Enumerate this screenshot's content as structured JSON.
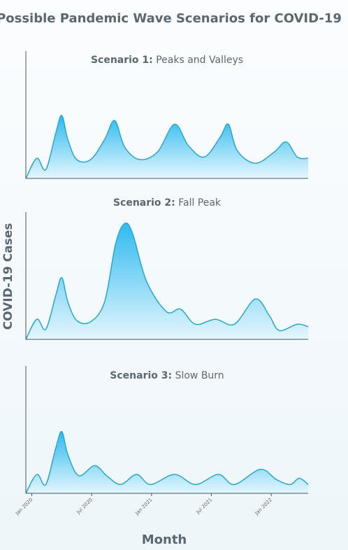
{
  "title": "Possible Pandemic Wave Scenarios for COVID-19",
  "ylabel": "COVID-19 Cases",
  "xlabel": "Month",
  "chart_data": [
    {
      "type": "area",
      "label": "Scenario 1:",
      "name": "Peaks and Valleys",
      "color": "#2aa6cc",
      "x": [
        -0.6,
        0.5,
        1.4,
        2.4,
        3.0,
        3.6,
        4.5,
        5.9,
        7.3,
        8.3,
        9.3,
        10.8,
        12.6,
        14.3,
        15.7,
        17.3,
        18.9,
        19.7,
        20.6,
        22.4,
        24.3,
        25.5,
        26.6,
        27.7
      ],
      "values": [
        0,
        16,
        7,
        36,
        50,
        31,
        15,
        15,
        31,
        46,
        25,
        15,
        21,
        43,
        26,
        17,
        33,
        43,
        22,
        12,
        21,
        29,
        17,
        16
      ],
      "xlim": [
        -0.6,
        27.7
      ],
      "ylim": [
        0,
        100
      ]
    },
    {
      "type": "area",
      "label": "Scenario 2:",
      "name": "Fall Peak",
      "color": "#2aa6cc",
      "x": [
        -0.6,
        0.5,
        1.4,
        2.4,
        3.0,
        3.6,
        4.5,
        5.9,
        7.3,
        8.4,
        9.3,
        10.1,
        11.5,
        13.5,
        14.9,
        16.4,
        18.4,
        20.3,
        22.4,
        23.8,
        24.8,
        26.6,
        27.7
      ],
      "values": [
        0,
        16,
        8,
        35,
        49,
        30,
        15,
        14,
        30,
        76,
        92,
        84,
        46,
        22,
        24,
        12,
        16,
        12,
        32,
        19,
        7,
        12,
        10
      ],
      "xlim": [
        -0.6,
        27.7
      ],
      "ylim": [
        0,
        100
      ]
    },
    {
      "type": "area",
      "label": "Scenario 3:",
      "name": "Slow Burn",
      "color": "#2aa6cc",
      "x": [
        -0.6,
        0.5,
        1.4,
        2.4,
        3.0,
        3.6,
        4.7,
        6.3,
        7.5,
        8.9,
        10.5,
        11.9,
        14.3,
        16.4,
        18.7,
        20.3,
        22.9,
        24.5,
        25.9,
        26.8,
        27.7
      ],
      "values": [
        0,
        15,
        7,
        36,
        49,
        31,
        14,
        22,
        14,
        7,
        15,
        7,
        15,
        7,
        15,
        7,
        19,
        11,
        7,
        12,
        7
      ],
      "xlim": [
        -0.6,
        27.7
      ],
      "ylim": [
        0,
        100
      ],
      "xticks": [
        {
          "value": 0,
          "label": "Jan 2020"
        },
        {
          "value": 6,
          "label": "Jul 2020"
        },
        {
          "value": 12,
          "label": "Jan 2021"
        },
        {
          "value": 18,
          "label": "Jul 2021"
        },
        {
          "value": 24,
          "label": "Jan 2022"
        }
      ]
    }
  ]
}
